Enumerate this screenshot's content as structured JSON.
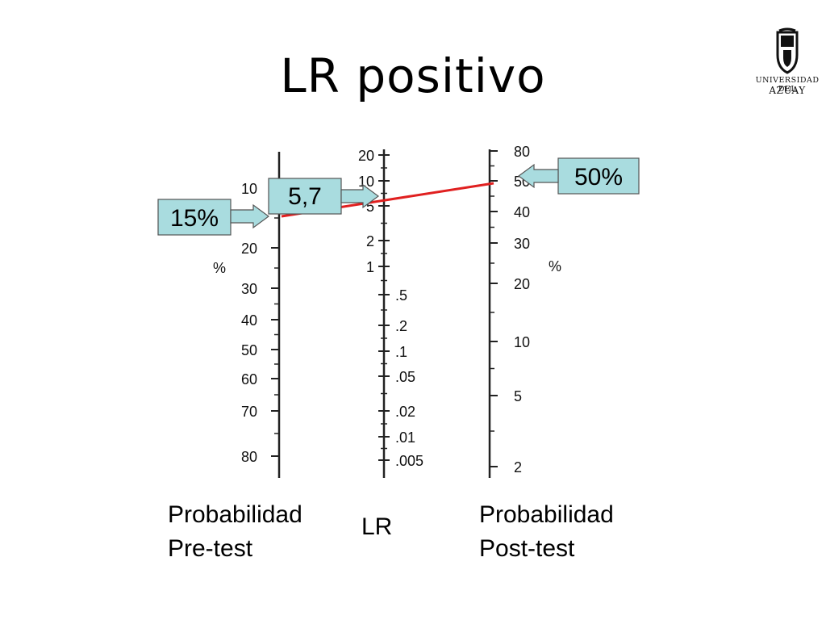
{
  "slide": {
    "title": "LR positivo"
  },
  "logo": {
    "line1": "UNIVERSIDAD DEL",
    "line2": "AZUAY"
  },
  "chart_data": {
    "type": "nomogram",
    "axes": {
      "pretest": {
        "unit": "%",
        "ticks": [
          "10",
          "20",
          "30",
          "40",
          "50",
          "60",
          "70",
          "80"
        ]
      },
      "lr": {
        "ticks": [
          "20",
          "10",
          "5",
          "2",
          "1",
          ".5",
          ".2",
          ".1",
          ".05",
          ".02",
          ".01",
          ".005"
        ]
      },
      "posttest": {
        "unit": "%",
        "ticks": [
          "80",
          "50",
          "40",
          "30",
          "20",
          "10",
          "5",
          "2"
        ]
      }
    },
    "callouts": {
      "pretest": "15%",
      "lr": "5,7",
      "posttest": "50%"
    },
    "line": {
      "from_pretest": 15,
      "lr": 5.7,
      "to_posttest": 50
    },
    "colors": {
      "line": "#e02020",
      "callout_fill": "#a9dcdf",
      "callout_stroke": "#555555",
      "axis": "#222222"
    }
  },
  "captions": {
    "pretest": [
      "Probabilidad",
      "Pre-test"
    ],
    "lr": "LR",
    "posttest": [
      "Probabilidad",
      "Post-test"
    ]
  }
}
